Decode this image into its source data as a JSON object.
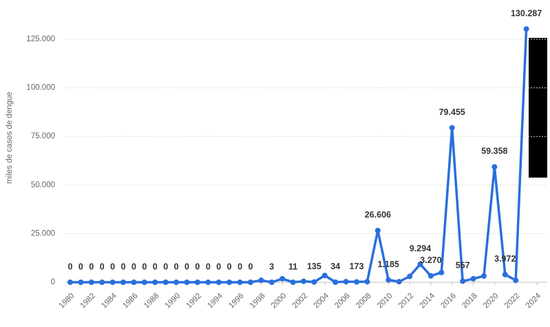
{
  "chart_data": {
    "type": "line",
    "y_axis_label": "miles de casos de dengue",
    "x": [
      1980,
      1981,
      1982,
      1983,
      1984,
      1985,
      1986,
      1987,
      1988,
      1989,
      1990,
      1991,
      1992,
      1993,
      1994,
      1995,
      1996,
      1997,
      1998,
      1999,
      2000,
      2001,
      2002,
      2003,
      2004,
      2005,
      2006,
      2007,
      2008,
      2009,
      2010,
      2011,
      2012,
      2013,
      2014,
      2015,
      2016,
      2017,
      2018,
      2019,
      2020,
      2021,
      2022,
      2023
    ],
    "series": [
      {
        "color": "#2a6fdb",
        "values": [
          0,
          0,
          0,
          0,
          0,
          0,
          0,
          0,
          0,
          0,
          0,
          0,
          0,
          0,
          0,
          0,
          0,
          0,
          1000,
          3,
          1800,
          11,
          500,
          135,
          3500,
          34,
          300,
          173,
          300,
          26606,
          1185,
          300,
          3000,
          9294,
          3270,
          5000,
          79455,
          557,
          1800,
          3200,
          59358,
          3972,
          1000,
          130287
        ],
        "value_labels": [
          "0",
          "0",
          "0",
          "0",
          "0",
          "0",
          "0",
          "0",
          "0",
          "0",
          "0",
          "0",
          "0",
          "0",
          "0",
          "0",
          "0",
          "0",
          null,
          "3",
          null,
          "11",
          null,
          "135",
          null,
          "34",
          null,
          "173",
          null,
          "26.606",
          "1.185",
          null,
          null,
          "9.294",
          "3.270",
          null,
          "79.455",
          "557",
          null,
          null,
          "59.358",
          "3.972",
          null,
          "130.287"
        ]
      }
    ],
    "xlim": [
      1980,
      2024
    ],
    "xticks": [
      1980,
      1982,
      1984,
      1986,
      1988,
      1990,
      1992,
      1994,
      1996,
      1998,
      2000,
      2002,
      2004,
      2006,
      2008,
      2010,
      2012,
      2014,
      2016,
      2018,
      2020,
      2022,
      2024
    ],
    "ylim": [
      0,
      125000
    ],
    "yticks": [
      {
        "value": 0,
        "label": "0"
      },
      {
        "value": 25000,
        "label": "25.000"
      },
      {
        "value": 50000,
        "label": "50.000"
      },
      {
        "value": 75000,
        "label": "75.000"
      },
      {
        "value": 100000,
        "label": "100.000"
      },
      {
        "value": 125000,
        "label": "125.000"
      }
    ],
    "grid": true
  }
}
